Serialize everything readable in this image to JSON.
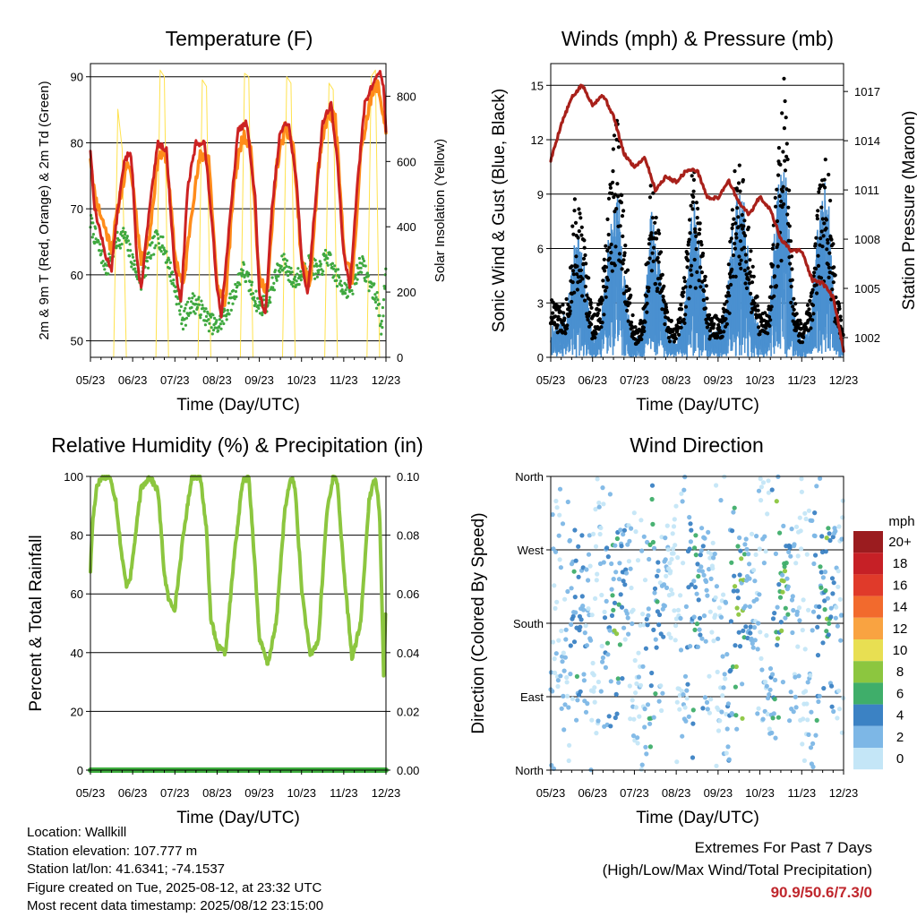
{
  "colors": {
    "temp_2m": "#cc2222",
    "temp_9m": "#ff8c1a",
    "dewpoint": "#3fa83f",
    "solar": "#ffe24d",
    "wind": "#4a90d0",
    "gust": "#000000",
    "pressure": "#a8201a",
    "rh": "#8cc63f",
    "precip": "#3fae3f",
    "extremes": "#c0272d"
  },
  "time_ticks": [
    "05/23",
    "06/23",
    "07/23",
    "08/23",
    "09/23",
    "10/23",
    "11/23",
    "12/23"
  ],
  "panels": {
    "temperature": {
      "title": "Temperature (F)",
      "xlabel": "Time (Day/UTC)",
      "ylabel_left": "2m & 9m T (Red, Orange) & 2m Td (Green)",
      "ylabel_right": "Solar Insolation (Yellow)"
    },
    "winds": {
      "title": "Winds (mph) & Pressure (mb)",
      "xlabel": "Time (Day/UTC)",
      "ylabel_left": "Sonic Wind & Gust (Blue, Black)",
      "ylabel_right": "Station Pressure (Maroon)"
    },
    "humidity": {
      "title": "Relative Humidity (%) & Precipitation (in)",
      "xlabel": "Time (Day/UTC)",
      "ylabel_left": "Percent & Total Rainfall"
    },
    "direction": {
      "title": "Wind Direction",
      "xlabel": "Time (Day/UTC)",
      "ylabel_left": "Direction (Colored By Speed)",
      "legend_title": "mph"
    }
  },
  "chart_data": [
    {
      "type": "line",
      "title": "Temperature (F)",
      "xlabel": "Time (Day/UTC)",
      "ylabel": "2m & 9m T (Red, Orange) & 2m Td (Green)",
      "y2label": "Solar Insolation (Yellow)",
      "x_ticks": [
        "05/23",
        "06/23",
        "07/23",
        "08/23",
        "09/23",
        "10/23",
        "11/23",
        "12/23"
      ],
      "ylim": [
        47.5,
        92
      ],
      "y_ticks": [
        50,
        60,
        70,
        80,
        90
      ],
      "y2lim": [
        0,
        900
      ],
      "y2_ticks": [
        0,
        200,
        400,
        600,
        800
      ],
      "grid": true,
      "series": [
        {
          "name": "2m T",
          "axis": "left",
          "x": [
            0,
            0.1,
            0.25,
            0.35,
            0.5,
            0.65,
            0.8,
            0.95,
            1.0,
            1.1,
            1.2,
            1.4,
            1.6,
            1.8,
            1.95,
            2.0,
            2.15,
            2.3,
            2.5,
            2.7,
            2.85,
            3.0,
            3.1,
            3.3,
            3.5,
            3.7,
            3.9,
            4.0,
            4.15,
            4.3,
            4.5,
            4.7,
            4.9,
            5.0,
            5.15,
            5.3,
            5.5,
            5.7,
            5.85,
            6.0,
            6.15,
            6.3,
            6.5,
            6.7,
            6.85,
            6.95,
            7.0
          ],
          "values": [
            79,
            70,
            66,
            63,
            61,
            70,
            77,
            79,
            75,
            62,
            58,
            70,
            80,
            79,
            65,
            61,
            56,
            73,
            80,
            80,
            70,
            58,
            54,
            68,
            82,
            83,
            72,
            57,
            54,
            70,
            82,
            83,
            73,
            62,
            57,
            69,
            83,
            86,
            77,
            63,
            58,
            72,
            86,
            89,
            91,
            88,
            82
          ]
        },
        {
          "name": "9m T",
          "axis": "left",
          "x": [
            0,
            0.1,
            0.3,
            0.5,
            0.7,
            0.9,
            1.0,
            1.2,
            1.4,
            1.6,
            1.8,
            2.0,
            2.2,
            2.4,
            2.6,
            2.8,
            3.0,
            3.2,
            3.4,
            3.6,
            3.8,
            4.0,
            4.2,
            4.4,
            4.6,
            4.8,
            5.0,
            5.2,
            5.4,
            5.6,
            5.8,
            6.0,
            6.2,
            6.4,
            6.6,
            6.8,
            7.0
          ],
          "values": [
            78,
            72,
            68,
            64,
            72,
            77,
            74,
            62,
            66,
            78,
            78,
            63,
            58,
            70,
            78,
            78,
            58,
            56,
            74,
            81,
            80,
            59,
            58,
            76,
            82,
            80,
            62,
            58,
            76,
            84,
            84,
            64,
            59,
            78,
            86,
            89,
            82
          ]
        },
        {
          "name": "2m Td",
          "axis": "left",
          "x": [
            0,
            0.2,
            0.4,
            0.6,
            0.8,
            1.0,
            1.2,
            1.4,
            1.6,
            1.8,
            2.0,
            2.2,
            2.4,
            2.6,
            2.8,
            3.0,
            3.2,
            3.4,
            3.6,
            3.8,
            4.0,
            4.2,
            4.4,
            4.6,
            4.8,
            5.0,
            5.2,
            5.4,
            5.6,
            5.8,
            6.0,
            6.2,
            6.4,
            6.6,
            6.8,
            6.9,
            7.0
          ],
          "values": [
            68,
            64,
            61,
            65,
            66,
            62,
            59,
            63,
            66,
            63,
            58,
            53,
            56,
            55,
            53,
            52,
            54,
            57,
            61,
            58,
            55,
            56,
            60,
            62,
            59,
            60,
            62,
            60,
            63,
            60,
            58,
            58,
            62,
            59,
            56,
            52,
            60
          ]
        },
        {
          "name": "Solar Insolation",
          "axis": "right",
          "x": [
            0.55,
            0.65,
            0.75,
            0.85,
            1.55,
            1.65,
            1.75,
            1.85,
            2.55,
            2.65,
            2.75,
            2.85,
            3.55,
            3.65,
            3.75,
            3.85,
            4.55,
            4.65,
            4.75,
            4.85,
            5.55,
            5.65,
            5.75,
            5.85,
            6.55,
            6.65,
            6.75,
            6.85
          ],
          "values": [
            0,
            760,
            640,
            0,
            0,
            880,
            860,
            0,
            0,
            850,
            830,
            0,
            0,
            870,
            860,
            0,
            0,
            860,
            840,
            0,
            0,
            840,
            820,
            0,
            0,
            860,
            880,
            0
          ]
        }
      ]
    },
    {
      "type": "scatter",
      "title": "Winds (mph) & Pressure (mb)",
      "xlabel": "Time (Day/UTC)",
      "ylabel": "Sonic Wind & Gust (Blue, Black)",
      "y2label": "Station Pressure (Maroon)",
      "x_ticks": [
        "05/23",
        "06/23",
        "07/23",
        "08/23",
        "09/23",
        "10/23",
        "11/23",
        "12/23"
      ],
      "ylim": [
        0,
        16.2
      ],
      "y_ticks": [
        0,
        3,
        6,
        9,
        12,
        15
      ],
      "y2lim": [
        1000.8,
        1018.7
      ],
      "y2_ticks": [
        1002,
        1005,
        1008,
        1011,
        1014,
        1017
      ],
      "grid": true,
      "series": [
        {
          "name": "Gust",
          "axis": "left",
          "x": [
            0,
            0.2,
            0.4,
            0.6,
            0.8,
            1.0,
            1.2,
            1.4,
            1.6,
            1.8,
            2.0,
            2.2,
            2.4,
            2.6,
            2.8,
            3.0,
            3.2,
            3.4,
            3.6,
            3.8,
            4.0,
            4.2,
            4.4,
            4.6,
            4.8,
            5.0,
            5.2,
            5.4,
            5.6,
            5.8,
            6.0,
            6.2,
            6.4,
            6.6,
            6.8,
            7.0
          ],
          "values": [
            3,
            2.5,
            3,
            8.5,
            6,
            2,
            3,
            9,
            12,
            5,
            1.5,
            2,
            8.5,
            6,
            2,
            1.5,
            4,
            9.5,
            6,
            2,
            2,
            3,
            9,
            9.5,
            5,
            2,
            2.5,
            9,
            14,
            3,
            1.5,
            3,
            8,
            10,
            4,
            1
          ]
        },
        {
          "name": "Wind",
          "axis": "left",
          "x": [
            0,
            0.2,
            0.4,
            0.6,
            0.8,
            1.0,
            1.2,
            1.4,
            1.6,
            1.8,
            2.0,
            2.2,
            2.4,
            2.6,
            2.8,
            3.0,
            3.2,
            3.4,
            3.6,
            3.8,
            4.0,
            4.2,
            4.4,
            4.6,
            4.8,
            5.0,
            5.2,
            5.4,
            5.6,
            5.8,
            6.0,
            6.2,
            6.4,
            6.6,
            6.8,
            7.0
          ],
          "values": [
            1,
            1,
            1.5,
            4,
            3,
            0.5,
            1,
            4,
            5.5,
            2,
            0.5,
            1,
            4.5,
            3,
            0.8,
            0.5,
            1.5,
            5,
            3,
            0.8,
            0.8,
            1.5,
            5,
            5,
            2,
            0.8,
            1,
            5,
            6,
            1.5,
            0.5,
            1,
            4.5,
            5.5,
            1.5,
            0.5
          ]
        },
        {
          "name": "Station Pressure",
          "axis": "right",
          "x": [
            0,
            0.25,
            0.5,
            0.75,
            1.0,
            1.25,
            1.5,
            1.75,
            2.0,
            2.25,
            2.5,
            2.75,
            3.0,
            3.25,
            3.5,
            3.75,
            4.0,
            4.25,
            4.5,
            4.75,
            5.0,
            5.25,
            5.5,
            5.75,
            6.0,
            6.25,
            6.5,
            6.75,
            7.0
          ],
          "values": [
            1012.8,
            1015,
            1016.6,
            1017.4,
            1016.2,
            1016.8,
            1015.5,
            1013.2,
            1012.4,
            1013,
            1011,
            1011.8,
            1011.5,
            1012.2,
            1012.2,
            1010.5,
            1010.5,
            1011.6,
            1010.2,
            1009.5,
            1010.6,
            1009.8,
            1008,
            1007.3,
            1007.3,
            1005.5,
            1005.3,
            1004.5,
            1001.2
          ]
        }
      ]
    },
    {
      "type": "line",
      "title": "Relative Humidity (%) & Precipitation (in)",
      "xlabel": "Time (Day/UTC)",
      "ylabel": "Percent & Total Rainfall",
      "x_ticks": [
        "05/23",
        "06/23",
        "07/23",
        "08/23",
        "09/23",
        "10/23",
        "11/23",
        "12/23"
      ],
      "ylim": [
        0,
        100
      ],
      "y_ticks": [
        0,
        20,
        40,
        60,
        80,
        100
      ],
      "y2lim": [
        0,
        0.1
      ],
      "y2_ticks": [
        "0.00",
        "0.02",
        "0.04",
        "0.06",
        "0.08",
        "0.10"
      ],
      "grid": true,
      "series": [
        {
          "name": "Relative Humidity",
          "axis": "left",
          "x": [
            0,
            0.05,
            0.15,
            0.3,
            0.45,
            0.6,
            0.75,
            0.85,
            0.95,
            1.05,
            1.2,
            1.4,
            1.6,
            1.75,
            1.85,
            2.0,
            2.2,
            2.4,
            2.6,
            2.75,
            2.85,
            3.0,
            3.2,
            3.4,
            3.6,
            3.75,
            3.85,
            4.0,
            4.2,
            4.4,
            4.6,
            4.75,
            4.85,
            5.0,
            5.2,
            5.4,
            5.6,
            5.75,
            5.85,
            6.0,
            6.2,
            6.4,
            6.6,
            6.75,
            6.85,
            6.95,
            7.0
          ],
          "values": [
            68,
            84,
            97,
            100,
            100,
            92,
            72,
            63,
            66,
            78,
            96,
            100,
            95,
            67,
            58,
            55,
            80,
            100,
            100,
            82,
            52,
            42,
            40,
            72,
            98,
            100,
            80,
            45,
            36,
            50,
            88,
            100,
            96,
            62,
            39,
            44,
            88,
            100,
            98,
            68,
            38,
            50,
            92,
            100,
            88,
            30,
            60
          ]
        },
        {
          "name": "Total Rainfall",
          "axis": "right",
          "x": [
            0,
            7
          ],
          "values": [
            0,
            0
          ]
        }
      ]
    },
    {
      "type": "scatter",
      "title": "Wind Direction",
      "xlabel": "Time (Day/UTC)",
      "ylabel": "Direction (Colored By Speed)",
      "x_ticks": [
        "05/23",
        "06/23",
        "07/23",
        "08/23",
        "09/23",
        "10/23",
        "11/23",
        "12/23"
      ],
      "y_ticks": [
        "North",
        "East",
        "South",
        "West",
        "North"
      ],
      "ylim": [
        0,
        360
      ],
      "grid": true,
      "legend": {
        "title": "mph",
        "position": "right",
        "labels": [
          "20+",
          "18",
          "16",
          "14",
          "12",
          "10",
          "8",
          "6",
          "4",
          "2",
          "0"
        ],
        "colors": [
          "#9b1c1f",
          "#c62026",
          "#e03a2a",
          "#f26a2d",
          "#f9a341",
          "#e8df52",
          "#8cc63f",
          "#3fae6a",
          "#3b82c4",
          "#7db7e6",
          "#c4e6f7"
        ]
      }
    }
  ],
  "footer": {
    "location": "Location: Wallkill",
    "elevation": "Station elevation: 107.777 m",
    "latlon": "Station lat/lon: 41.6341; -74.1537",
    "created": "Figure created on Tue, 2025-08-12, at 23:32 UTC",
    "recent": "Most recent data timestamp: 2025/08/12 23:15:00"
  },
  "extremes": {
    "title": "Extremes For Past 7 Days",
    "subtitle": "(High/Low/Max Wind/Total Precipitation)",
    "values": "90.9/50.6/7.3/0"
  }
}
